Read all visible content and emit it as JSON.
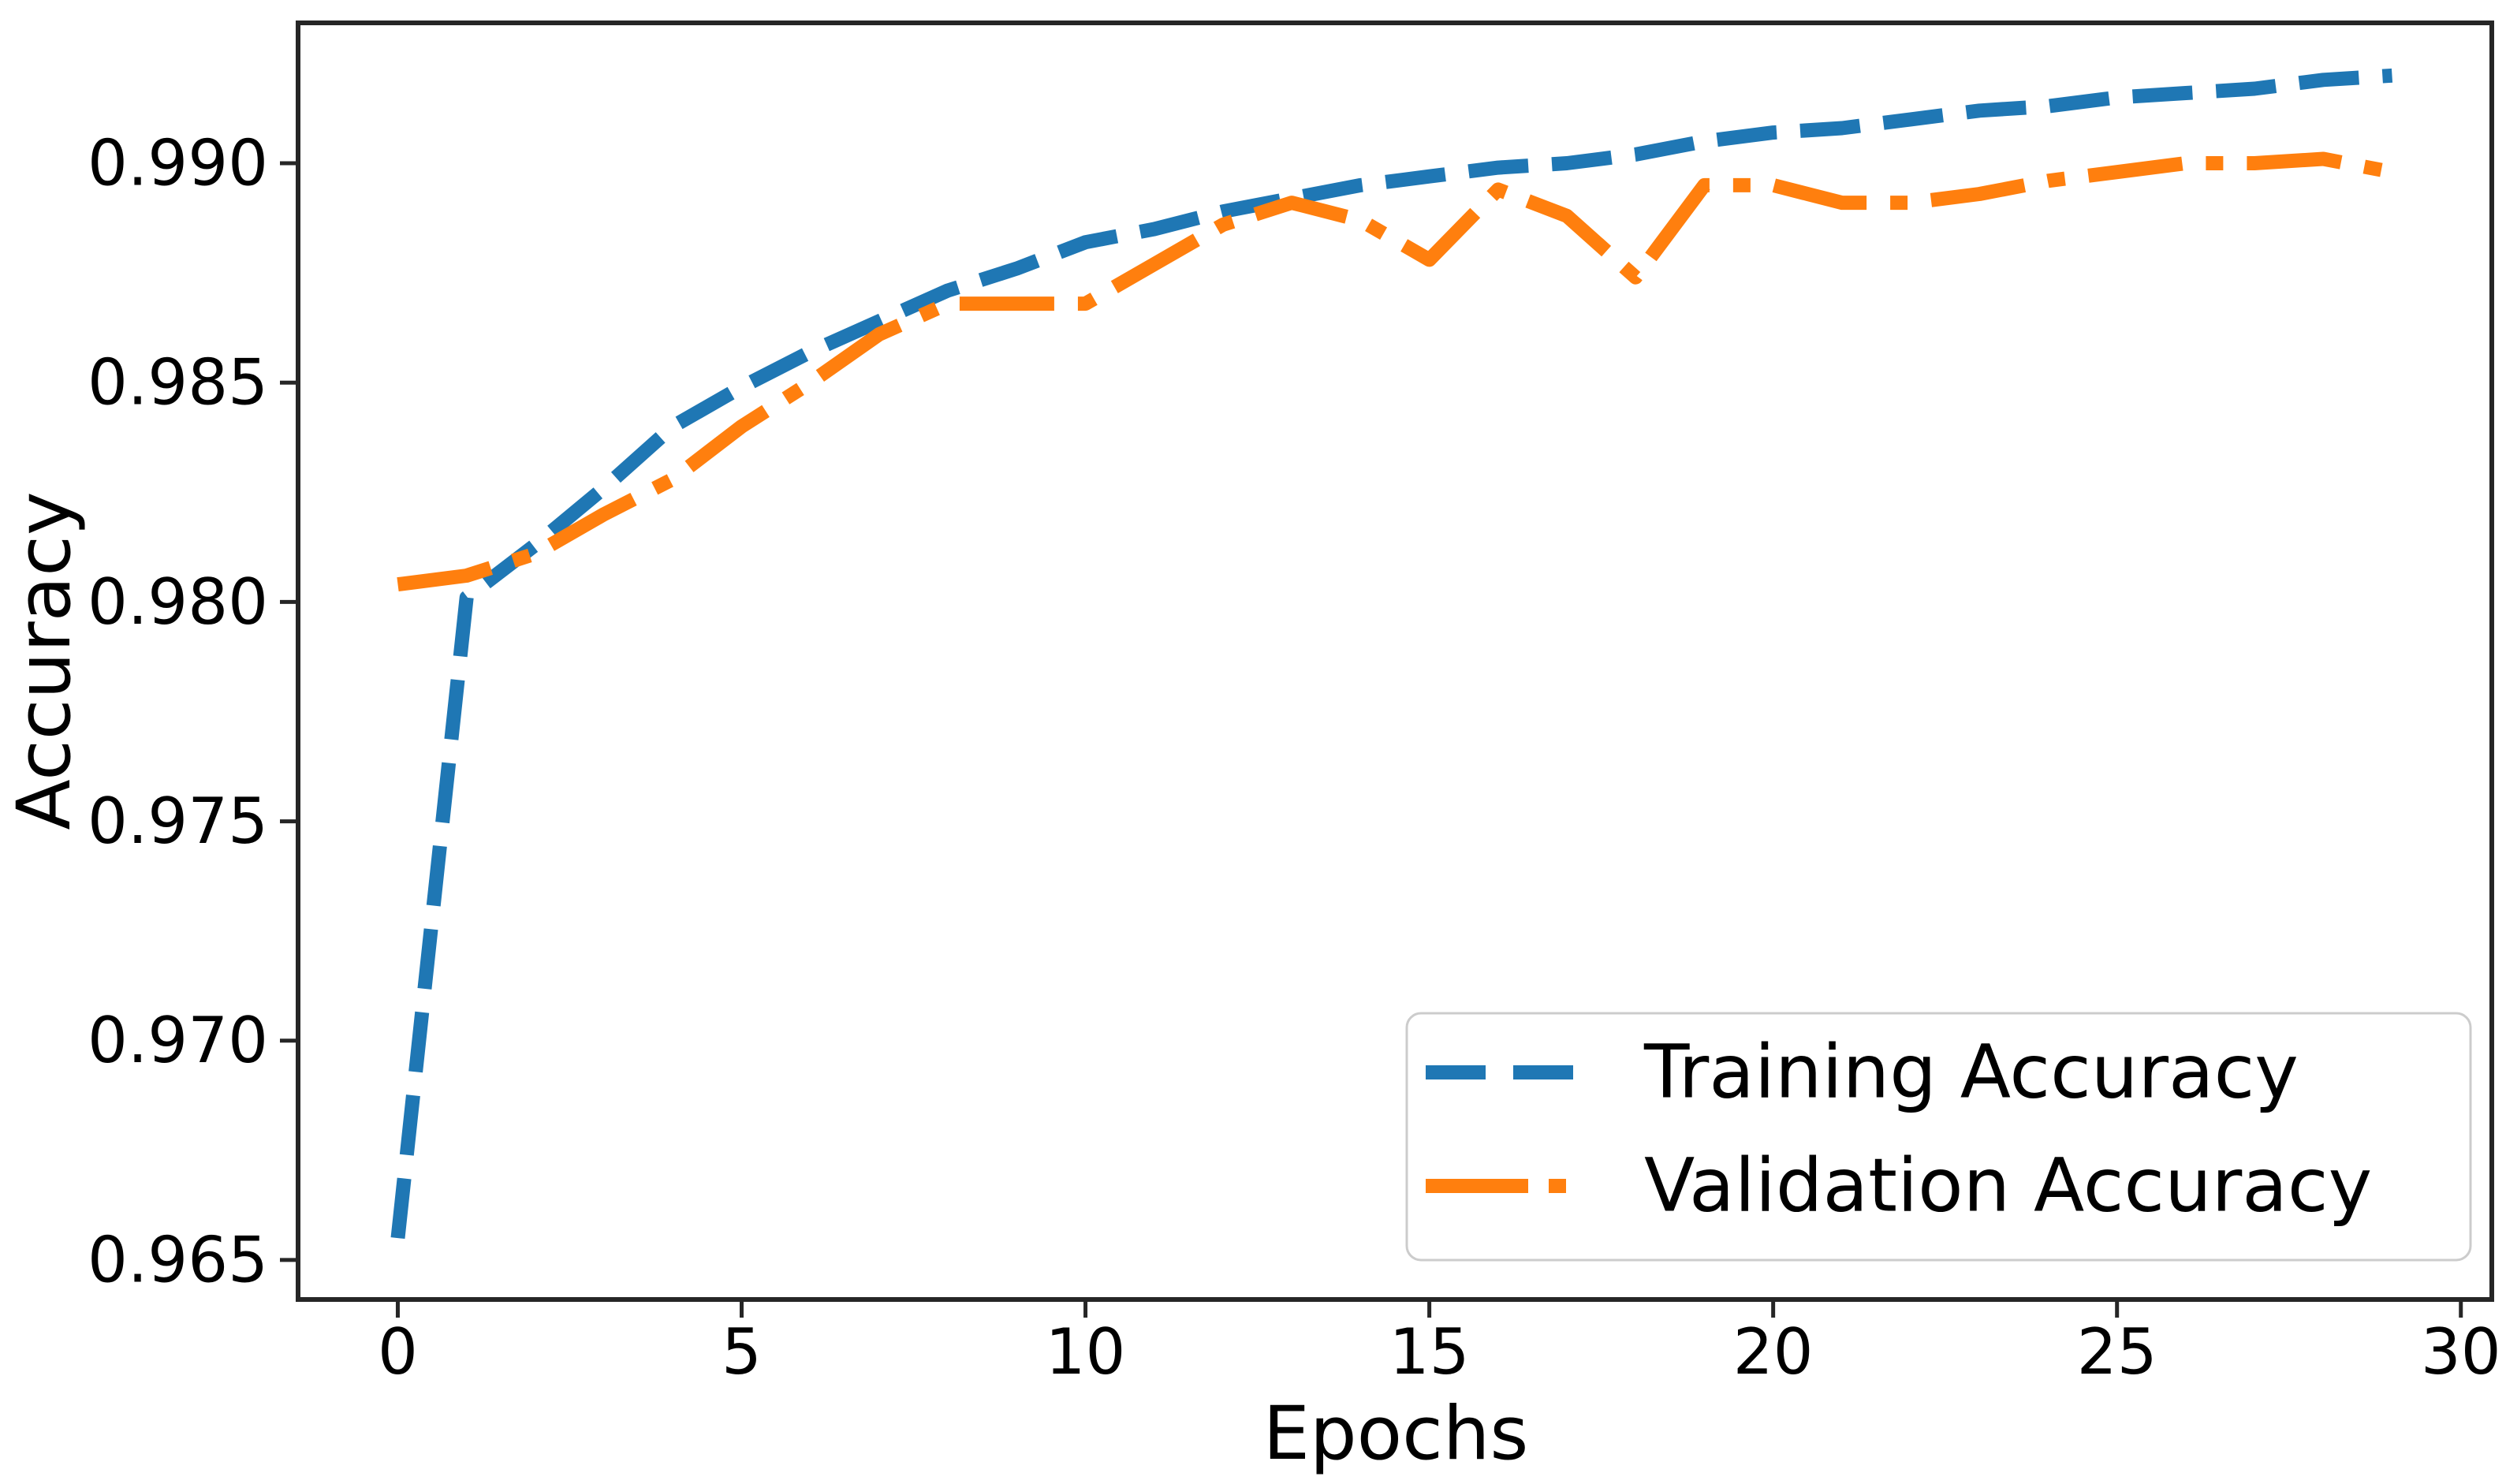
{
  "chart_data": {
    "type": "line",
    "title": "",
    "xlabel": "Epochs",
    "ylabel": "Accuracy",
    "x": [
      0,
      1,
      2,
      3,
      4,
      5,
      6,
      7,
      8,
      9,
      10,
      11,
      12,
      13,
      14,
      15,
      16,
      17,
      18,
      19,
      20,
      21,
      22,
      23,
      24,
      25,
      26,
      27,
      28,
      29
    ],
    "series": [
      {
        "name": "Training Accuracy",
        "color": "#1f77b4",
        "style": "dashed",
        "dasharray": "76 30",
        "linewidth": 18,
        "values": [
          0.9655,
          0.9801,
          0.9813,
          0.9826,
          0.984,
          0.9849,
          0.9857,
          0.9864,
          0.9871,
          0.9876,
          0.9882,
          0.9885,
          0.9889,
          0.9892,
          0.9895,
          0.9897,
          0.9899,
          0.99,
          0.9902,
          0.9905,
          0.9907,
          0.9908,
          0.991,
          0.9912,
          0.9913,
          0.9915,
          0.9916,
          0.9917,
          0.9919,
          0.992
        ]
      },
      {
        "name": "Validation Accuracy",
        "color": "#ff7f0e",
        "style": "dashdot",
        "dasharray": "120 30 22 30",
        "linewidth": 18,
        "values": [
          0.9804,
          0.9806,
          0.9811,
          0.982,
          0.9828,
          0.984,
          0.985,
          0.9861,
          0.9868,
          0.9868,
          0.9868,
          0.9877,
          0.9886,
          0.9891,
          0.9887,
          0.9878,
          0.9894,
          0.9888,
          0.9874,
          0.9895,
          0.9895,
          0.9891,
          0.9891,
          0.9893,
          0.9896,
          0.9898,
          0.99,
          0.99,
          0.9901,
          0.9898
        ]
      }
    ],
    "xticks": [
      0,
      5,
      10,
      15,
      20,
      25,
      30
    ],
    "xtick_labels": [
      "0",
      "5",
      "10",
      "15",
      "20",
      "25",
      "30"
    ],
    "yticks": [
      0.965,
      0.97,
      0.975,
      0.98,
      0.985,
      0.99
    ],
    "ytick_labels": [
      "0.965",
      "0.970",
      "0.975",
      "0.980",
      "0.985",
      "0.990"
    ],
    "xlim": [
      -1.45,
      30.45
    ],
    "ylim": [
      0.9641,
      0.9932
    ],
    "grid": false,
    "legend_position": "lower right",
    "background_color": "#ffffff",
    "spine_color": "#262626"
  }
}
